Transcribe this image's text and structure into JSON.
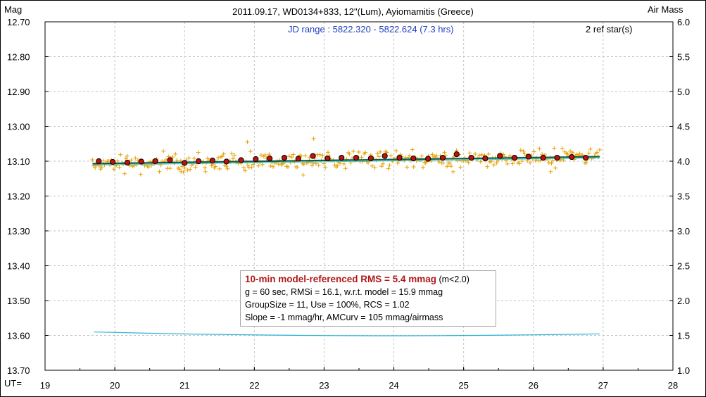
{
  "chart_data": {
    "type": "scatter",
    "title": "2011.09.17, WD0134+833, 12\"(Lum), Ayiomamitis (Greece)",
    "ylabel_left": "Mag",
    "ylabel_right": "Air Mass",
    "xlabel": "UT=",
    "jd_range": "JD range : 5822.320 - 5822.624 (7.3 hrs)",
    "ref_stars": "2 ref star(s)",
    "xlim": [
      19,
      28
    ],
    "x_ticks": [
      "19",
      "20",
      "21",
      "22",
      "23",
      "24",
      "25",
      "26",
      "27",
      "28"
    ],
    "ylim": [
      12.7,
      13.7
    ],
    "y_ticks": [
      "12.70",
      "12.80",
      "12.90",
      "13.00",
      "13.10",
      "13.20",
      "13.30",
      "13.40",
      "13.50",
      "13.60",
      "13.70"
    ],
    "y2lim": [
      6.0,
      1.0
    ],
    "y2_ticks": [
      "6.0",
      "5.5",
      "5.0",
      "4.5",
      "4.0",
      "3.5",
      "3.0",
      "2.5",
      "2.0",
      "1.5",
      "1.0"
    ],
    "grid": true,
    "series": [
      {
        "role": "individual-measurements",
        "color": "#e8a000",
        "marker": "plus",
        "x_range": [
          19.68,
          26.95
        ],
        "mean_mag": 13.1,
        "scatter_mmag": 16.1,
        "outliers": [
          {
            "x": 20.95,
            "y": 13.13
          },
          {
            "x": 21.3,
            "y": 13.13
          },
          {
            "x": 21.9,
            "y": 13.045
          },
          {
            "x": 22.85,
            "y": 13.035
          },
          {
            "x": 22.7,
            "y": 13.14
          },
          {
            "x": 24.85,
            "y": 13.13
          },
          {
            "x": 26.25,
            "y": 13.13
          }
        ]
      },
      {
        "role": "group-averages",
        "color": "#c01010",
        "marker": "circle",
        "x": [
          19.77,
          19.97,
          20.18,
          20.38,
          20.58,
          20.79,
          21.0,
          21.2,
          21.4,
          21.6,
          21.81,
          22.02,
          22.22,
          22.43,
          22.63,
          22.84,
          23.05,
          23.25,
          23.46,
          23.67,
          23.87,
          24.08,
          24.28,
          24.49,
          24.7,
          24.9,
          25.11,
          25.31,
          25.52,
          25.73,
          25.93,
          26.14,
          26.34,
          26.55,
          26.75
        ],
        "y": [
          13.1,
          13.102,
          13.104,
          13.101,
          13.1,
          13.097,
          13.105,
          13.1,
          13.098,
          13.101,
          13.097,
          13.094,
          13.092,
          13.09,
          13.093,
          13.085,
          13.092,
          13.09,
          13.09,
          13.092,
          13.085,
          13.09,
          13.092,
          13.093,
          13.09,
          13.08,
          13.09,
          13.092,
          13.085,
          13.09,
          13.087,
          13.09,
          13.09,
          13.088,
          13.09
        ]
      },
      {
        "role": "model-fit",
        "color": "#0f5f4f",
        "x": [
          19.68,
          26.95
        ],
        "y": [
          13.107,
          13.087
        ]
      },
      {
        "role": "air-mass",
        "color": "#28b4d8",
        "axis": "right",
        "x": [
          19.7,
          20.2,
          20.7,
          21.2,
          21.7,
          22.2,
          22.7,
          23.2,
          23.7,
          24.2,
          24.7,
          25.2,
          25.7,
          26.2,
          26.7,
          26.95
        ],
        "y": [
          1.55,
          1.538,
          1.527,
          1.518,
          1.511,
          1.505,
          1.5,
          1.497,
          1.495,
          1.495,
          1.497,
          1.5,
          1.505,
          1.511,
          1.518,
          1.522
        ]
      }
    ],
    "stats_box": {
      "line1_bold": "10-min model-referenced RMS = 5.4 mmag",
      "line1_rest": " (m<2.0)",
      "line2": "g = 60 sec, RMSi = 16.1, w.r.t. model = 15.9 mmag",
      "line3": "GroupSize = 11, Use = 100%, RCS = 1.02",
      "line4": "Slope = -1 mmag/hr, AMCurv = 105 mmag/airmass"
    }
  }
}
